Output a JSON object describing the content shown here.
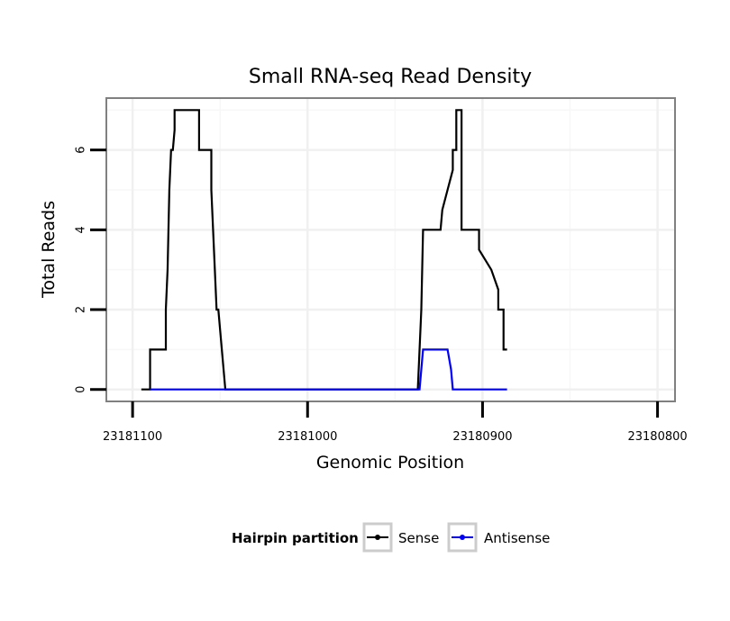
{
  "chart_data": {
    "type": "line",
    "title": "Small RNA-seq Read Density",
    "xlabel": "Genomic Position",
    "ylabel": "Total Reads",
    "xlim": [
      23181115,
      23180790
    ],
    "x_reversed": true,
    "ylim": [
      -0.3,
      7.3
    ],
    "x_ticks": [
      23181100,
      23181000,
      23180900,
      23180800
    ],
    "x_tick_labels": [
      "23181100",
      "23181000",
      "23180900",
      "23180800"
    ],
    "y_ticks": [
      0,
      2,
      4,
      6
    ],
    "y_tick_labels": [
      "0",
      "2",
      "4",
      "6"
    ],
    "grid": true,
    "legend": {
      "title": "Hairpin partition",
      "position": "bottom",
      "entries": [
        "Sense",
        "Antisense"
      ]
    },
    "series": [
      {
        "name": "Sense",
        "color": "#000000",
        "x": [
          23181095,
          23181090,
          23181090,
          23181081,
          23181081,
          23181080,
          23181079,
          23181078,
          23181077,
          23181076,
          23181076,
          23181073,
          23181062,
          23181062,
          23181055,
          23181055,
          23181053,
          23181052,
          23181051,
          23181049,
          23181049,
          23181047,
          23180937,
          23180936,
          23180935,
          23180934,
          23180924,
          23180923,
          23180920,
          23180920,
          23180917,
          23180917,
          23180915,
          23180915,
          23180912,
          23180912,
          23180902,
          23180902,
          23180895,
          23180895,
          23180891,
          23180891,
          23180888,
          23180888,
          23180886
        ],
        "y": [
          0,
          0,
          1,
          1,
          2,
          3,
          5,
          6,
          6,
          6.5,
          7,
          7,
          7,
          6,
          6,
          5,
          3,
          2,
          2,
          1,
          1,
          0,
          0,
          1,
          2,
          4,
          4,
          4.5,
          5,
          5,
          5.5,
          6,
          6,
          7,
          7,
          4,
          4,
          3.5,
          3,
          3,
          2.5,
          2,
          2,
          1,
          1
        ]
      },
      {
        "name": "Antisense",
        "color": "#0000ff",
        "x": [
          23181090,
          23180936,
          23180935,
          23180934,
          23180920,
          23180918,
          23180917,
          23180886
        ],
        "y": [
          0,
          0,
          0.5,
          1,
          1,
          0.5,
          0,
          0
        ]
      }
    ]
  }
}
